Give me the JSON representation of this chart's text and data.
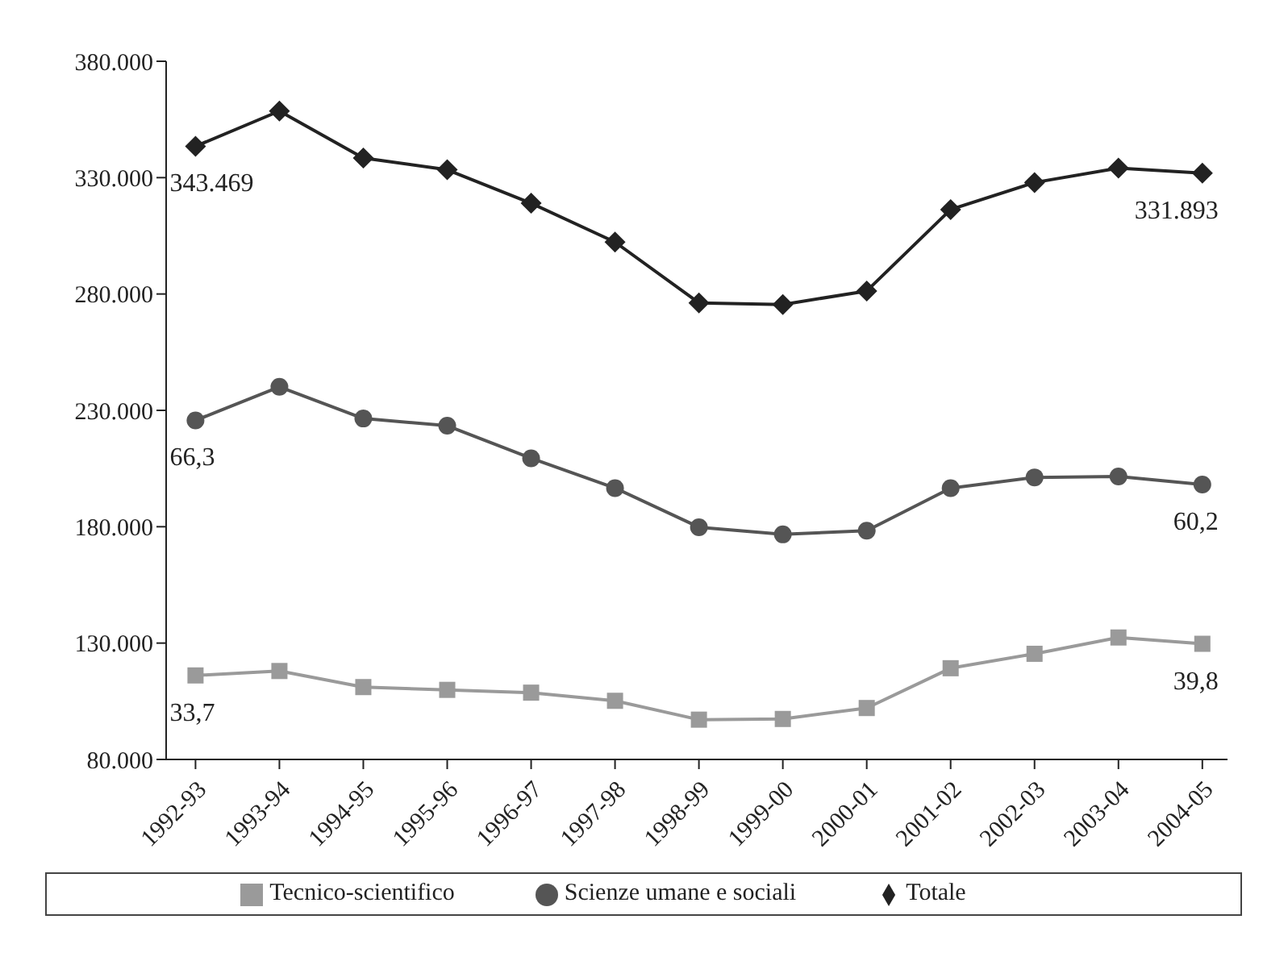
{
  "chart_data": {
    "type": "line",
    "categories": [
      "1992-93",
      "1993-94",
      "1994-95",
      "1995-96",
      "1996-97",
      "1997-98",
      "1998-99",
      "1999-00",
      "2000-01",
      "2001-02",
      "2002-03",
      "2003-04",
      "2004-05"
    ],
    "series": [
      {
        "name": "Tecnico-scientifico",
        "color": "#9a9a9a",
        "marker": "square",
        "values": [
          116100,
          118000,
          111100,
          109900,
          108700,
          105200,
          97100,
          97400,
          102100,
          119200,
          125400,
          132400,
          129700
        ]
      },
      {
        "name": "Scienze umane e sociali",
        "color": "#555555",
        "marker": "circle",
        "values": [
          225700,
          240100,
          226500,
          223400,
          209400,
          196600,
          179800,
          176700,
          178300,
          196600,
          201200,
          201600,
          198100
        ]
      },
      {
        "name": "Totale",
        "color": "#222222",
        "marker": "diamond",
        "values": [
          343469,
          358600,
          338400,
          333400,
          319000,
          302300,
          276200,
          275500,
          281300,
          316300,
          327900,
          334100,
          331893
        ]
      }
    ],
    "ylim": [
      80000,
      380000
    ],
    "yticks": [
      {
        "value": 80000,
        "label": "80.000"
      },
      {
        "value": 130000,
        "label": "130.000"
      },
      {
        "value": 180000,
        "label": "180.000"
      },
      {
        "value": 230000,
        "label": "230.000"
      },
      {
        "value": 280000,
        "label": "280.000"
      },
      {
        "value": 330000,
        "label": "330.000"
      },
      {
        "value": 380000,
        "label": "380.000"
      }
    ],
    "grid": false,
    "legend": "bottom",
    "line_style": "solid",
    "annotations": [
      {
        "text": "343.469",
        "x": "1992-93",
        "y": 343469
      },
      {
        "text": "331.893",
        "x": "2004-05",
        "y": 331893
      },
      {
        "text": "66,3",
        "x": "1992-93",
        "y": 225700
      },
      {
        "text": "60,2",
        "x": "2004-05",
        "y": 198100
      },
      {
        "text": "33,7",
        "x": "1992-93",
        "y": 116100
      },
      {
        "text": "39,8",
        "x": "2004-05",
        "y": 129700
      }
    ]
  }
}
